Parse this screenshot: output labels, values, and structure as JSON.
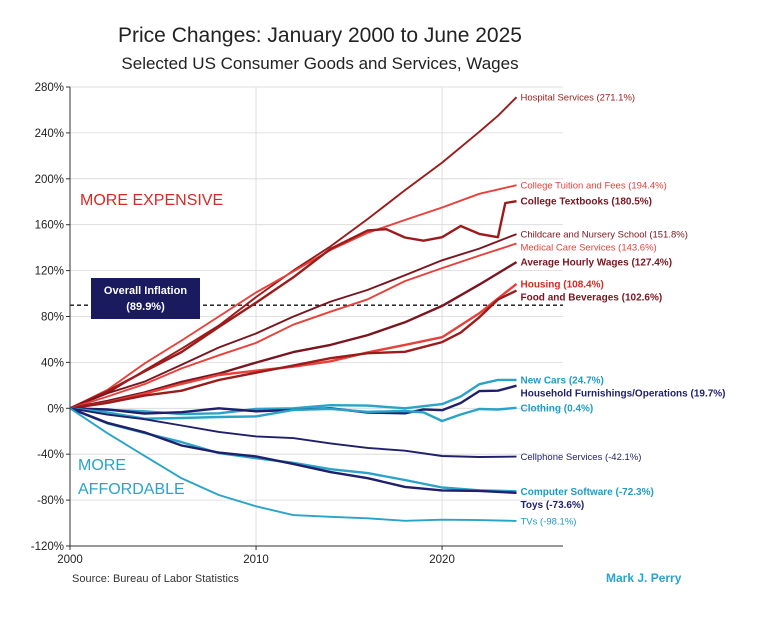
{
  "chart_data": {
    "type": "line",
    "title": "Price Changes: January 2000 to June 2025",
    "subtitle": "Selected US Consumer Goods and Services, Wages",
    "xlabel": "",
    "ylabel": "",
    "xlim": [
      2000,
      2026.5
    ],
    "ylim": [
      -120,
      280
    ],
    "x_ticks": [
      {
        "value": 2000,
        "label": "2000"
      },
      {
        "value": 2010,
        "label": "2010"
      },
      {
        "value": 2020,
        "label": "2020"
      }
    ],
    "y_ticks": [
      {
        "value": 280,
        "label": "280%"
      },
      {
        "value": 240,
        "label": "240%"
      },
      {
        "value": 200,
        "label": "200%"
      },
      {
        "value": 160,
        "label": "160%"
      },
      {
        "value": 120,
        "label": "120%"
      },
      {
        "value": 80,
        "label": "80%"
      },
      {
        "value": 40,
        "label": "40%"
      },
      {
        "value": 0,
        "label": "0%"
      },
      {
        "value": -40,
        "label": "-40%"
      },
      {
        "value": -80,
        "label": "-80%"
      },
      {
        "value": -120,
        "label": "-120%"
      }
    ],
    "zone_labels": {
      "expensive": "MORE EXPENSIVE",
      "affordable_1": "MORE",
      "affordable_2": "AFFORDABLE"
    },
    "overall_inflation": {
      "value": 89.9,
      "label": "Overall Inflation",
      "value_label": "(89.9%)"
    },
    "series": [
      {
        "name": "Hospital Services",
        "label": "Hospital Services (271.1%)",
        "color": "#9b1b1b",
        "bold": false,
        "x": [
          2000,
          2002,
          2004,
          2006,
          2008,
          2010,
          2012,
          2014,
          2016,
          2018,
          2020,
          2022,
          2023,
          2024
        ],
        "values": [
          0,
          14,
          32,
          52,
          73,
          96,
          120,
          142,
          164,
          190,
          215,
          240,
          255,
          271.1
        ]
      },
      {
        "name": "College Tuition and Fees",
        "label": "College Tuition and Fees (194.4%)",
        "color": "#e8403a",
        "bold": false,
        "x": [
          2000,
          2002,
          2004,
          2006,
          2008,
          2010,
          2012,
          2014,
          2016,
          2018,
          2020,
          2022,
          2024
        ],
        "values": [
          0,
          16,
          38,
          60,
          80,
          100,
          120,
          138,
          152,
          165,
          175,
          186,
          194.4
        ]
      },
      {
        "name": "College Textbooks",
        "label": "College Textbooks (180.5%)",
        "color": "#9b1b1b",
        "bold": true,
        "x": [
          2000,
          2002,
          2004,
          2006,
          2008,
          2010,
          2012,
          2014,
          2016,
          2017,
          2018,
          2019,
          2020,
          2021,
          2022,
          2023,
          2023.4,
          2024
        ],
        "values": [
          0,
          14,
          32,
          50,
          70,
          92,
          115,
          138,
          155,
          157,
          148,
          146,
          150,
          158,
          152,
          150,
          178,
          180.5
        ]
      },
      {
        "name": "Childcare and Nursery School",
        "label": "Childcare and Nursery School (151.8%)",
        "color": "#7a1520",
        "bold": false,
        "x": [
          2000,
          2002,
          2004,
          2006,
          2008,
          2010,
          2012,
          2014,
          2016,
          2018,
          2020,
          2022,
          2024
        ],
        "values": [
          0,
          12,
          24,
          38,
          52,
          66,
          80,
          92,
          104,
          116,
          128,
          140,
          151.8
        ]
      },
      {
        "name": "Medical Care Services",
        "label": "Medical Care Services (143.6%)",
        "color": "#e8403a",
        "bold": false,
        "x": [
          2000,
          2002,
          2004,
          2006,
          2008,
          2010,
          2012,
          2014,
          2016,
          2018,
          2020,
          2022,
          2024
        ],
        "values": [
          0,
          10,
          22,
          34,
          46,
          58,
          72,
          84,
          96,
          110,
          122,
          134,
          143.6
        ]
      },
      {
        "name": "Average Hourly Wages",
        "label": "Average Hourly Wages (127.4%)",
        "color": "#7a1520",
        "bold": true,
        "x": [
          2000,
          2002,
          2004,
          2006,
          2008,
          2010,
          2012,
          2014,
          2016,
          2018,
          2020,
          2022,
          2024
        ],
        "values": [
          0,
          7,
          14,
          22,
          31,
          40,
          48,
          56,
          64,
          74,
          90,
          108,
          127.4
        ]
      },
      {
        "name": "Housing",
        "label": "Housing (108.4%)",
        "color": "#e8403a",
        "bold": true,
        "x": [
          2000,
          2002,
          2004,
          2006,
          2008,
          2010,
          2012,
          2014,
          2016,
          2018,
          2020,
          2022,
          2024
        ],
        "values": [
          0,
          6,
          12,
          21,
          30,
          32,
          36,
          42,
          48,
          55,
          63,
          82,
          108.4
        ]
      },
      {
        "name": "Food and Beverages",
        "label": "Food and Beverages (102.6%)",
        "color": "#9b1b1b",
        "bold": true,
        "x": [
          2000,
          2002,
          2004,
          2006,
          2008,
          2010,
          2012,
          2014,
          2016,
          2018,
          2020,
          2021,
          2022,
          2023,
          2024
        ],
        "values": [
          0,
          5,
          10,
          16,
          25,
          30,
          38,
          44,
          47,
          50,
          58,
          65,
          80,
          95,
          102.6
        ]
      },
      {
        "name": "New Cars",
        "label": "New Cars (24.7%)",
        "color": "#2aa3c9",
        "bold": true,
        "x": [
          2000,
          2002,
          2004,
          2006,
          2008,
          2010,
          2012,
          2014,
          2016,
          2018,
          2020,
          2021,
          2022,
          2023,
          2024
        ],
        "values": [
          0,
          -2,
          -3,
          -4,
          -5,
          -1,
          1,
          2,
          2,
          1,
          3,
          10,
          22,
          24,
          24.7
        ]
      },
      {
        "name": "Household Furnishings/Operations",
        "label": "Household Furnishings/Operations (19.7%)",
        "color": "#1f1f6b",
        "bold": true,
        "x": [
          2000,
          2002,
          2004,
          2006,
          2008,
          2010,
          2012,
          2014,
          2016,
          2018,
          2019,
          2020,
          2021,
          2022,
          2023,
          2024
        ],
        "values": [
          0,
          -2,
          -4,
          -3,
          -1,
          -2,
          -1,
          -1,
          -3,
          -4,
          -2,
          -1,
          5,
          14,
          16,
          19.7
        ]
      },
      {
        "name": "Clothing",
        "label": "Clothing (0.4%)",
        "color": "#2aa3c9",
        "bold": true,
        "x": [
          2000,
          2002,
          2004,
          2006,
          2008,
          2010,
          2012,
          2014,
          2016,
          2018,
          2019,
          2020,
          2021,
          2022,
          2023,
          2024
        ],
        "values": [
          0,
          -4,
          -8,
          -9,
          -8,
          -6,
          -2,
          -1,
          -2,
          -3,
          -4,
          -10,
          -6,
          -1,
          0,
          0.4
        ]
      },
      {
        "name": "Cellphone Services",
        "label": "Cellphone Services (-42.1%)",
        "color": "#1f1f6b",
        "bold": false,
        "x": [
          2000,
          2002,
          2004,
          2006,
          2008,
          2010,
          2012,
          2014,
          2016,
          2018,
          2020,
          2022,
          2024
        ],
        "values": [
          0,
          -5,
          -9,
          -16,
          -20,
          -24,
          -27,
          -30,
          -34,
          -38,
          -41,
          -42,
          -42.1
        ]
      },
      {
        "name": "Computer Software",
        "label": "Computer Software (-72.3%)",
        "color": "#2aa3c9",
        "bold": true,
        "x": [
          2000,
          2002,
          2004,
          2006,
          2008,
          2010,
          2012,
          2014,
          2016,
          2018,
          2020,
          2022,
          2024
        ],
        "values": [
          0,
          -12,
          -22,
          -30,
          -38,
          -44,
          -48,
          -52,
          -57,
          -63,
          -68,
          -72,
          -72.3
        ]
      },
      {
        "name": "Toys",
        "label": "Toys (-73.6%)",
        "color": "#1f1f6b",
        "bold": true,
        "x": [
          2000,
          2002,
          2004,
          2006,
          2008,
          2010,
          2012,
          2014,
          2016,
          2018,
          2020,
          2022,
          2024
        ],
        "values": [
          0,
          -12,
          -22,
          -32,
          -38,
          -43,
          -48,
          -55,
          -62,
          -68,
          -71,
          -73,
          -73.6
        ]
      },
      {
        "name": "TVs",
        "label": "TVs (-98.1%)",
        "color": "#2aa3c9",
        "bold": false,
        "x": [
          2000,
          2002,
          2004,
          2006,
          2008,
          2010,
          2012,
          2014,
          2016,
          2018,
          2020,
          2022,
          2024
        ],
        "values": [
          0,
          -22,
          -42,
          -60,
          -76,
          -86,
          -92,
          -95,
          -96.5,
          -97,
          -97.5,
          -98,
          -98.1
        ]
      }
    ],
    "source": "Source: Bureau of Labor Statistics",
    "author": "Mark J. Perry"
  }
}
